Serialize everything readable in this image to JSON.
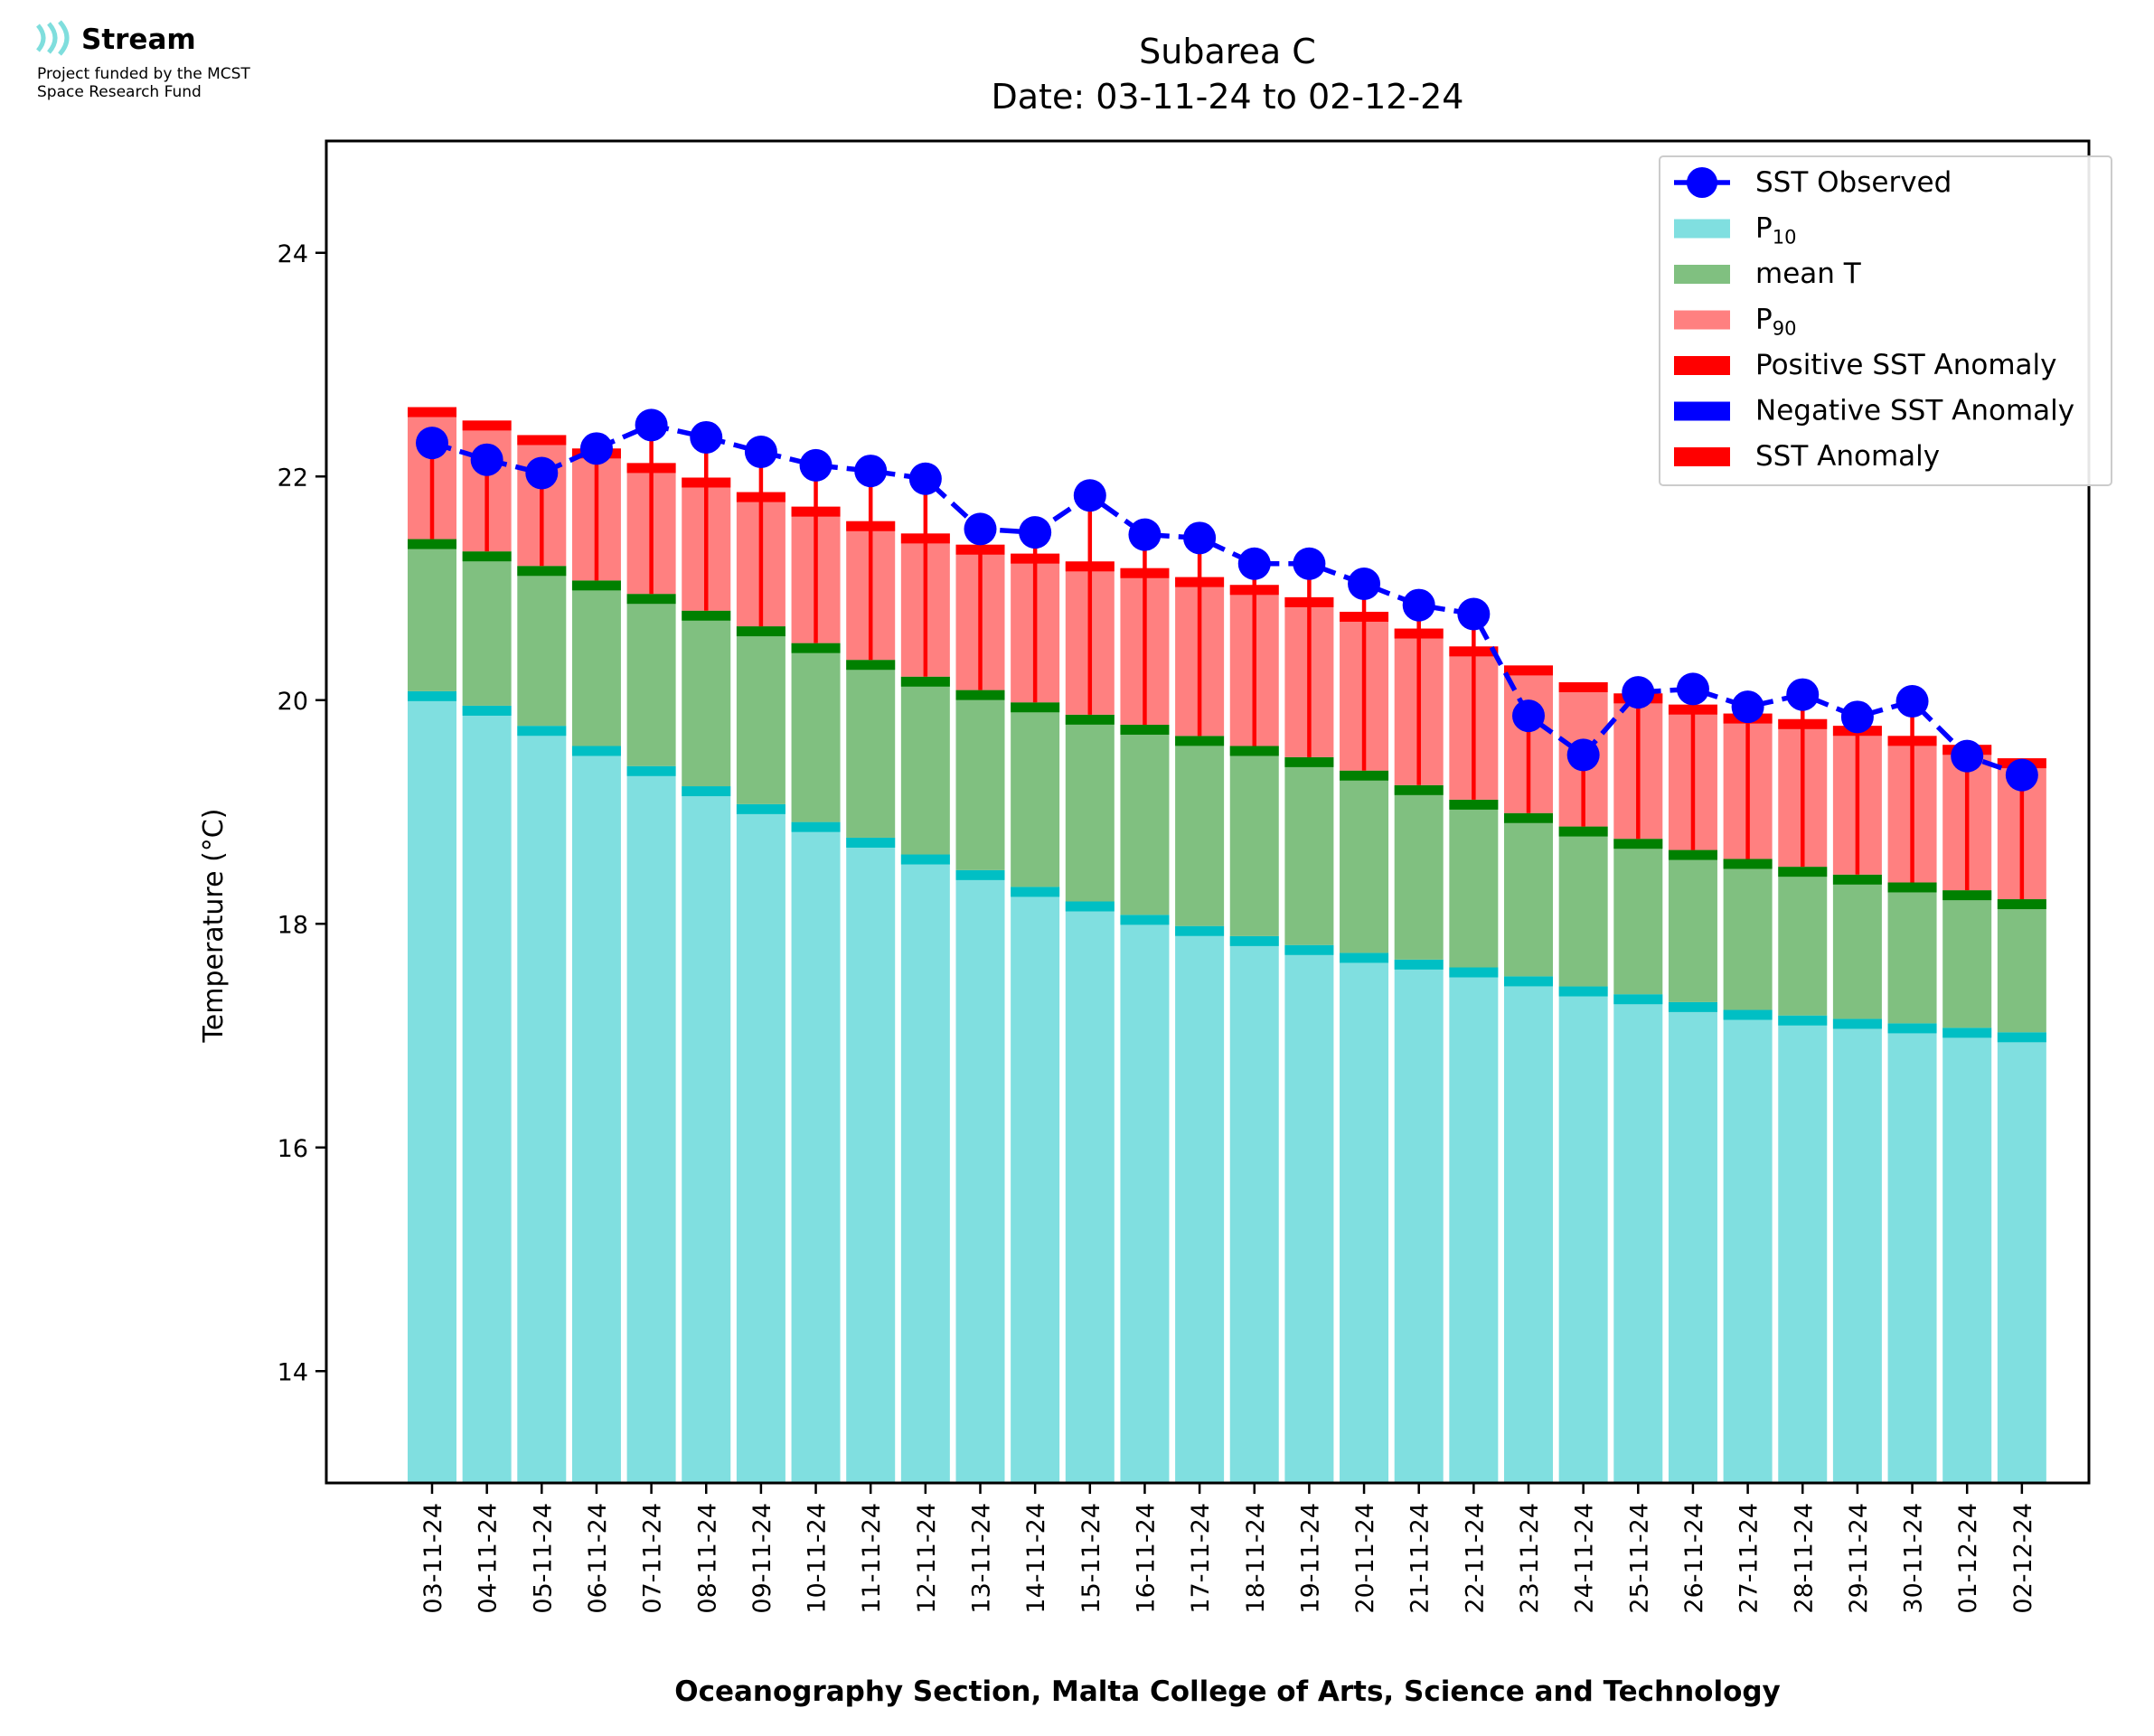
{
  "logo": {
    "name": "Stream",
    "line1": "Project funded by the MCST",
    "line2": "Space Research Fund",
    "icon": "stream-waves-icon",
    "icon_color": "#7fdedd"
  },
  "chart_data": {
    "type": "bar",
    "title": "Subarea C",
    "subtitle": "Date: 03-11-24 to 02-12-24",
    "xlabel": "Oceanography Section, Malta College of Arts, Science and Technology",
    "ylabel": "Temperature (°C)",
    "ylim": [
      13,
      25
    ],
    "yticks": [
      14,
      16,
      18,
      20,
      22,
      24
    ],
    "grid": false,
    "legend_position": "top-right",
    "categories": [
      "03-11-24",
      "04-11-24",
      "05-11-24",
      "06-11-24",
      "07-11-24",
      "08-11-24",
      "09-11-24",
      "10-11-24",
      "11-11-24",
      "12-11-24",
      "13-11-24",
      "14-11-24",
      "15-11-24",
      "16-11-24",
      "17-11-24",
      "18-11-24",
      "19-11-24",
      "20-11-24",
      "21-11-24",
      "22-11-24",
      "23-11-24",
      "24-11-24",
      "25-11-24",
      "26-11-24",
      "27-11-24",
      "28-11-24",
      "29-11-24",
      "30-11-24",
      "01-12-24",
      "02-12-24"
    ],
    "colors": {
      "p10": "#80dfe0",
      "p10_cap": "#00bfc4",
      "mean": "#80c080",
      "mean_cap": "#008000",
      "p90": "#ff8080",
      "p90_cap": "#ff0000",
      "anomaly": "#ff0000",
      "observed": "#0000ff"
    },
    "legend": [
      {
        "key": "observed",
        "label": "SST Observed",
        "marker": "line-dot",
        "color": "#0000ff"
      },
      {
        "key": "p10",
        "label": "P",
        "sub": "10",
        "marker": "patch",
        "color": "#80dfe0"
      },
      {
        "key": "mean",
        "label": "mean T",
        "marker": "patch",
        "color": "#80c080"
      },
      {
        "key": "p90",
        "label": "P",
        "sub": "90",
        "marker": "patch",
        "color": "#ff8080"
      },
      {
        "key": "pos",
        "label": "Positive SST Anomaly",
        "marker": "patch",
        "color": "#ff0000"
      },
      {
        "key": "neg",
        "label": "Negative SST Anomaly",
        "marker": "patch",
        "color": "#0000ff"
      },
      {
        "key": "anom",
        "label": "SST Anomaly",
        "marker": "patch",
        "color": "#ff0000"
      }
    ],
    "series": [
      {
        "key": "p10",
        "values": [
          20.08,
          19.95,
          19.77,
          19.59,
          19.41,
          19.23,
          19.07,
          18.91,
          18.77,
          18.62,
          18.48,
          18.33,
          18.2,
          18.08,
          17.98,
          17.89,
          17.81,
          17.74,
          17.68,
          17.61,
          17.53,
          17.44,
          17.37,
          17.3,
          17.23,
          17.18,
          17.15,
          17.11,
          17.07,
          17.03
        ]
      },
      {
        "key": "mean",
        "values": [
          21.44,
          21.33,
          21.2,
          21.07,
          20.95,
          20.8,
          20.66,
          20.51,
          20.36,
          20.21,
          20.09,
          19.98,
          19.87,
          19.78,
          19.68,
          19.59,
          19.49,
          19.37,
          19.24,
          19.11,
          18.99,
          18.87,
          18.76,
          18.66,
          18.58,
          18.51,
          18.44,
          18.37,
          18.3,
          18.22
        ]
      },
      {
        "key": "p90",
        "values": [
          22.62,
          22.5,
          22.37,
          22.25,
          22.12,
          21.99,
          21.86,
          21.73,
          21.6,
          21.49,
          21.39,
          21.31,
          21.24,
          21.18,
          21.1,
          21.03,
          20.92,
          20.79,
          20.64,
          20.48,
          20.31,
          20.16,
          20.06,
          19.96,
          19.88,
          19.83,
          19.77,
          19.68,
          19.6,
          19.48
        ]
      },
      {
        "key": "observed",
        "values": [
          22.3,
          22.15,
          22.03,
          22.25,
          22.46,
          22.35,
          22.22,
          22.1,
          22.05,
          21.98,
          21.53,
          21.5,
          21.83,
          21.48,
          21.45,
          21.22,
          21.22,
          21.04,
          20.85,
          20.77,
          19.86,
          19.51,
          20.07,
          20.1,
          19.94,
          20.05,
          19.85,
          19.99,
          19.5,
          19.33
        ]
      }
    ]
  }
}
